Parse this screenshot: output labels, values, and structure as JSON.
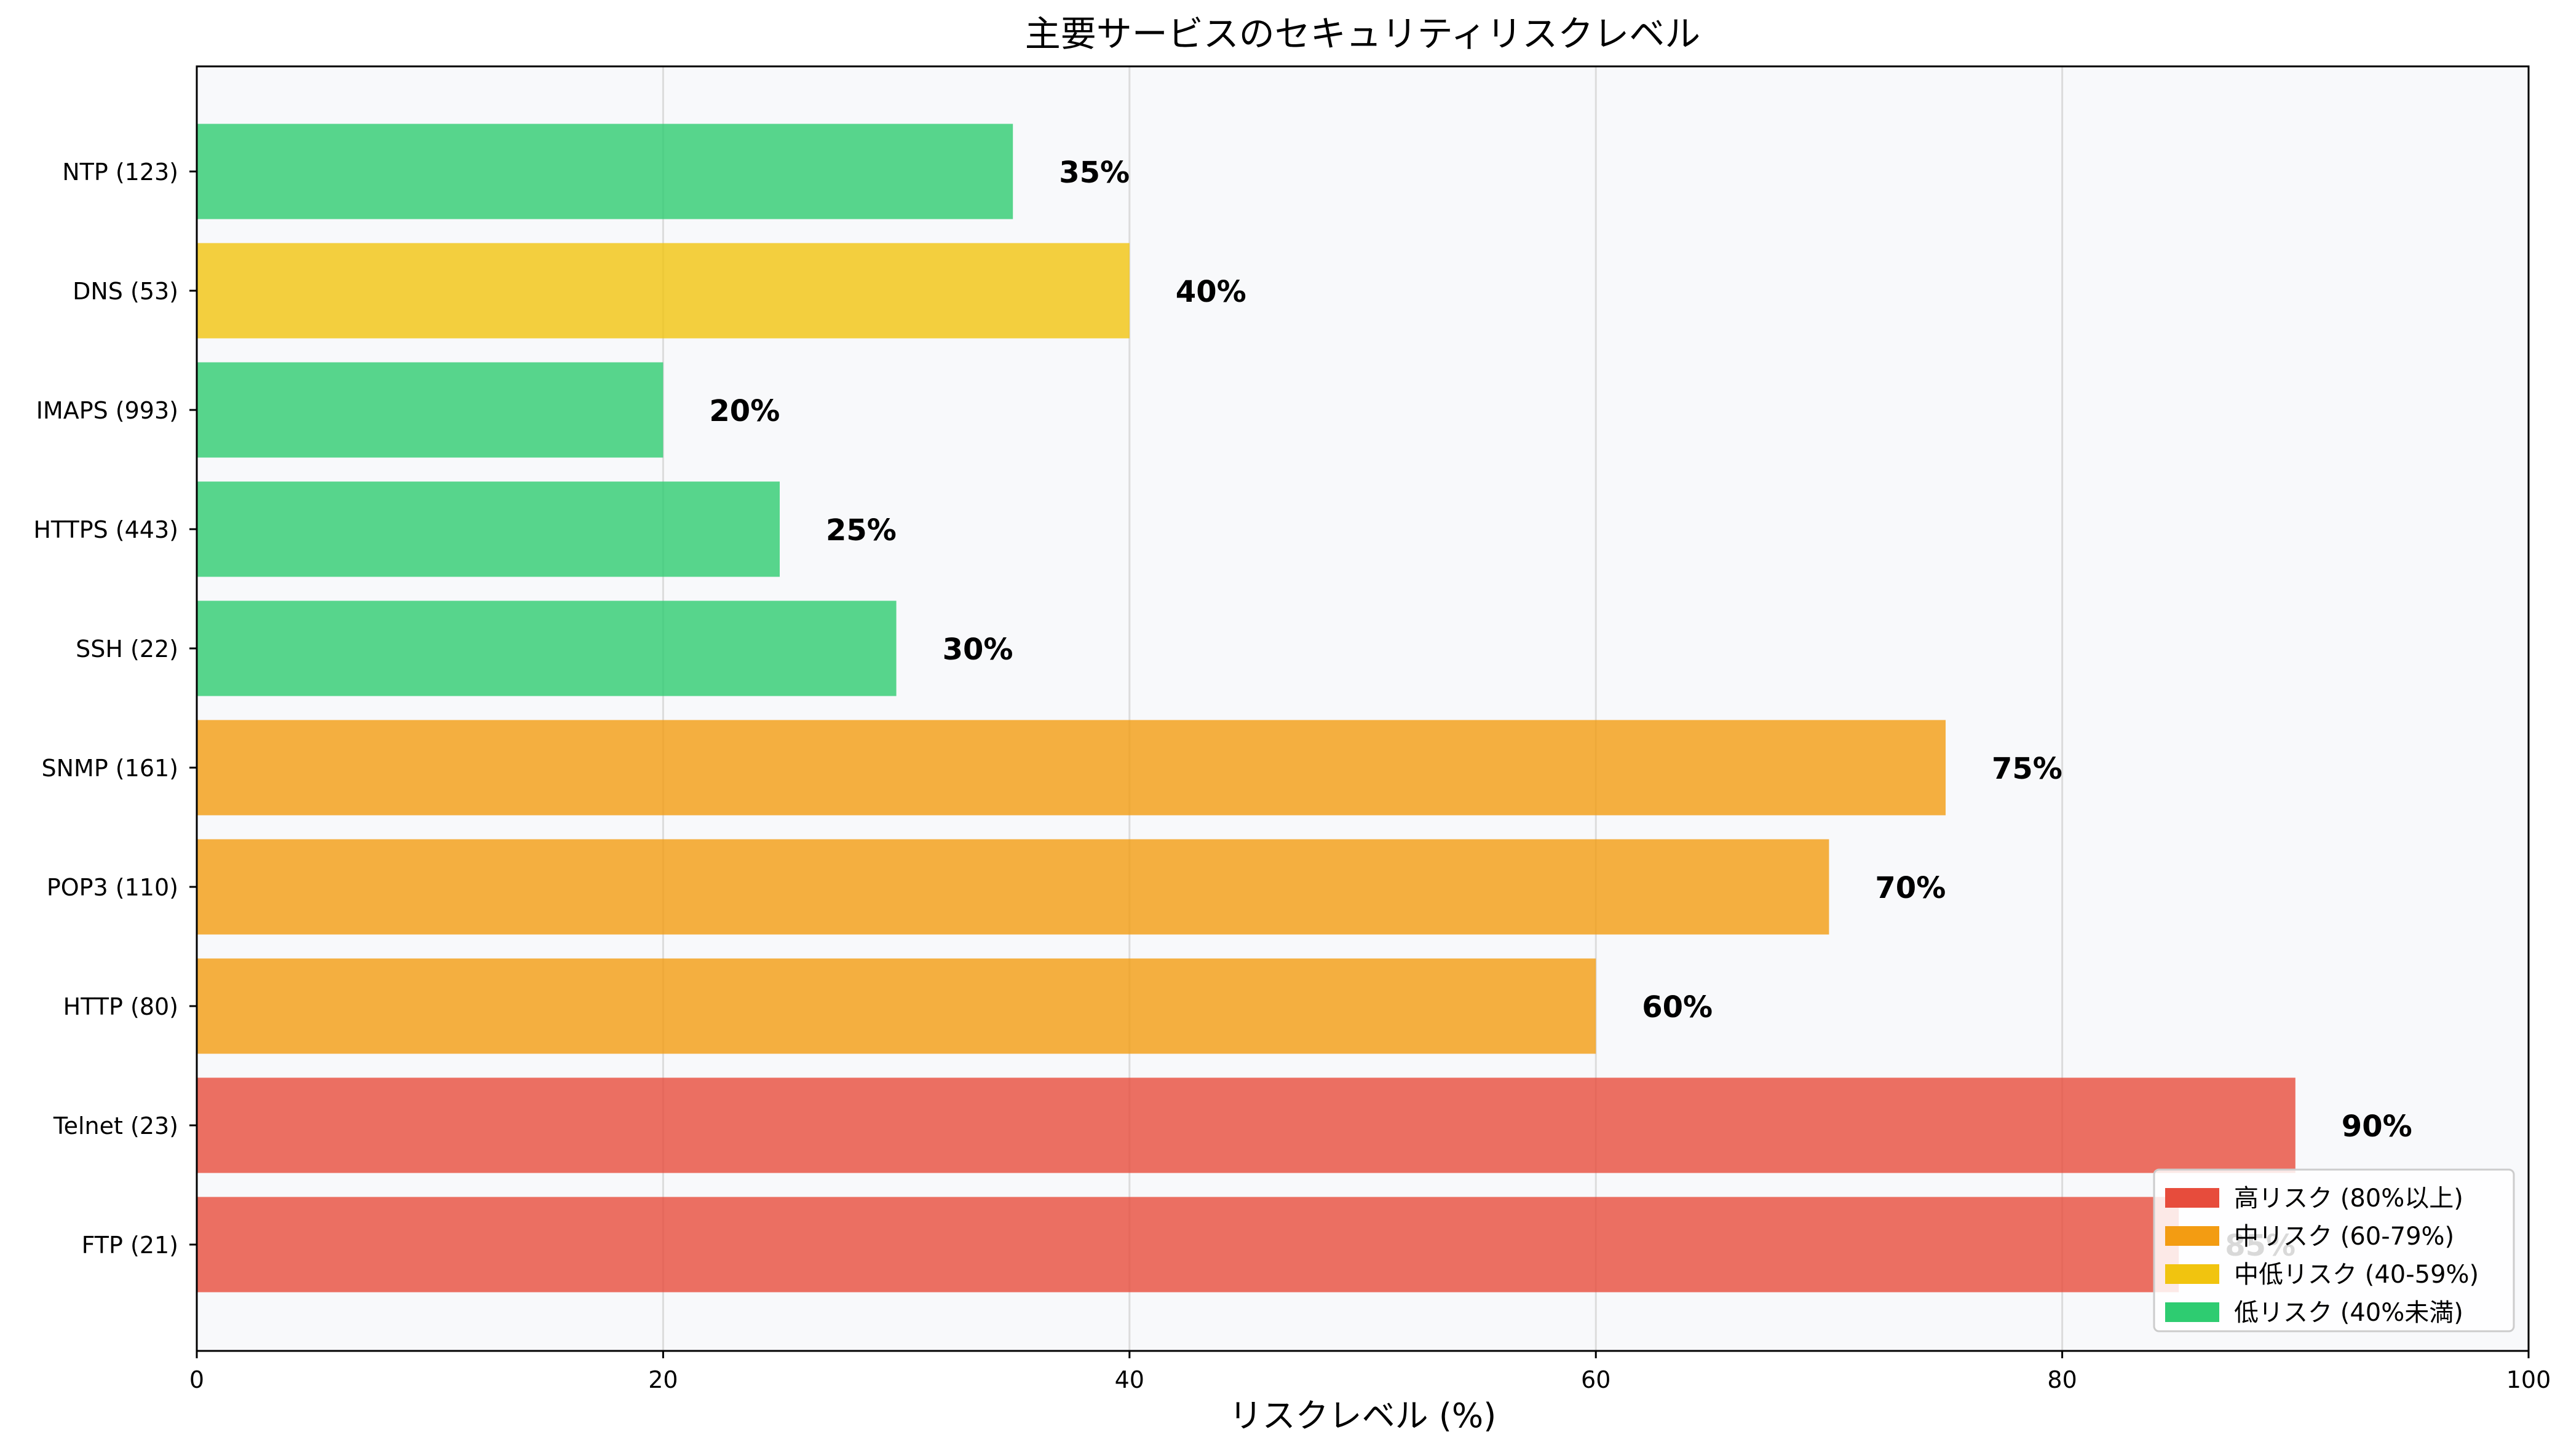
{
  "chart_data": {
    "type": "bar",
    "orientation": "horizontal",
    "title": "主要サービスのセキュリティリスクレベル",
    "xlabel": "リスクレベル (%)",
    "ylabel": "",
    "xlim": [
      0,
      100
    ],
    "xticks": [
      "0",
      "20",
      "40",
      "60",
      "80",
      "100"
    ],
    "grid": "x",
    "categories": [
      "FTP (21)",
      "Telnet (23)",
      "HTTP (80)",
      "POP3 (110)",
      "SNMP (161)",
      "SSH (22)",
      "HTTPS (443)",
      "IMAPS (993)",
      "DNS (53)",
      "NTP (123)"
    ],
    "values": [
      85,
      90,
      60,
      70,
      75,
      30,
      25,
      20,
      40,
      35
    ],
    "value_labels": [
      "85%",
      "90%",
      "60%",
      "70%",
      "75%",
      "30%",
      "25%",
      "20%",
      "40%",
      "35%"
    ],
    "bar_colors": [
      "#e74c3c",
      "#e74c3c",
      "#f39c12",
      "#f39c12",
      "#f39c12",
      "#2ecc71",
      "#2ecc71",
      "#2ecc71",
      "#f1c40f",
      "#2ecc71"
    ],
    "legend_position": "bottom-right",
    "legend": [
      {
        "label": "高リスク (80%以上)",
        "color": "#e74c3c"
      },
      {
        "label": "中リスク (60-79%)",
        "color": "#f39c12"
      },
      {
        "label": "中低リスク (40-59%)",
        "color": "#f1c40f"
      },
      {
        "label": "低リスク (40%未満)",
        "color": "#2ecc71"
      }
    ],
    "plot_background": "#f8f9fb"
  }
}
